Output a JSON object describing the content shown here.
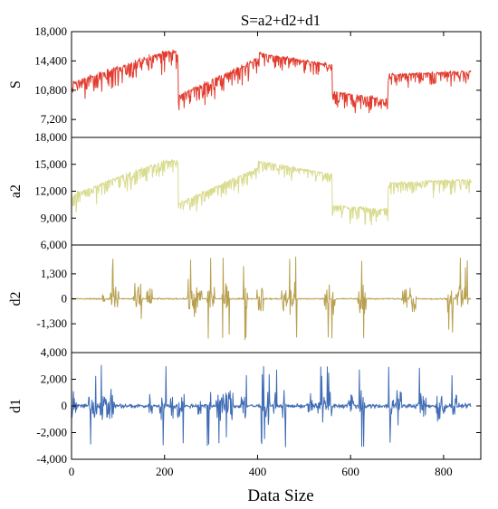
{
  "chart_data": {
    "type": "line",
    "title": "S=a2+d2+d1",
    "xlabel": "Data Size",
    "xlim": [
      0,
      880
    ],
    "xticks": [
      "0",
      "200",
      "400",
      "600",
      "800"
    ],
    "xtick_values": [
      0,
      200,
      400,
      600,
      800
    ],
    "n_points": 860,
    "panels": [
      {
        "name": "S",
        "ylabel": "S",
        "color": "#e23b2e",
        "ylim": [
          5000,
          18000
        ],
        "yticks": [
          "7,200",
          "10,800",
          "14,400",
          "18,000"
        ],
        "ytick_values": [
          7200,
          10800,
          14400,
          18000
        ],
        "series_summary": {
          "segments": [
            {
              "x_range": [
                0,
                200
              ],
              "level_start": 11500,
              "level_end": 15400,
              "spread": 3400
            },
            {
              "x_range": [
                230,
                400
              ],
              "level_start": 10000,
              "level_end": 14500,
              "spread": 3200
            },
            {
              "x_range": [
                400,
                560
              ],
              "level_start": 15300,
              "level_end": 13800,
              "spread": 2200
            },
            {
              "x_range": [
                560,
                680
              ],
              "level_start": 10500,
              "level_end": 9500,
              "spread": 3000
            },
            {
              "x_range": [
                680,
                860
              ],
              "level_start": 12600,
              "level_end": 13000,
              "spread": 2600
            }
          ]
        }
      },
      {
        "name": "a2",
        "ylabel": "a2",
        "color": "#d9db8e",
        "ylim": [
          6000,
          18000
        ],
        "yticks": [
          "6,000",
          "9,000",
          "12,000",
          "15,000",
          "18,000"
        ],
        "ytick_values": [
          6000,
          9000,
          12000,
          15000,
          18000
        ],
        "series_summary": {
          "segments": [
            {
              "x_range": [
                0,
                200
              ],
              "level_start": 11500,
              "level_end": 15300,
              "spread": 2600
            },
            {
              "x_range": [
                230,
                400
              ],
              "level_start": 10500,
              "level_end": 14500,
              "spread": 2600
            },
            {
              "x_range": [
                400,
                560
              ],
              "level_start": 15300,
              "level_end": 13800,
              "spread": 1800
            },
            {
              "x_range": [
                560,
                680
              ],
              "level_start": 10300,
              "level_end": 9800,
              "spread": 2400
            },
            {
              "x_range": [
                680,
                860
              ],
              "level_start": 12800,
              "level_end": 13200,
              "spread": 2200
            }
          ]
        }
      },
      {
        "name": "d2",
        "ylabel": "d2",
        "color": "#b8a050",
        "ylim": [
          -2800,
          2800
        ],
        "yticks": [
          "-1,300",
          "0",
          "1,300"
        ],
        "ytick_values": [
          -1300,
          0,
          1300
        ],
        "series_summary": {
          "mean": 0,
          "typical_amplitude": 700,
          "max_spike": 2200
        }
      },
      {
        "name": "d1",
        "ylabel": "d1",
        "color": "#3f6cb5",
        "ylim": [
          -4000,
          4000
        ],
        "yticks": [
          "-4,000",
          "-2,000",
          "0",
          "2,000",
          "4,000"
        ],
        "ytick_values": [
          -4000,
          -2000,
          0,
          2000,
          4000
        ],
        "series_summary": {
          "mean": 0,
          "typical_amplitude": 1000,
          "max_spike": 3100
        }
      }
    ]
  }
}
